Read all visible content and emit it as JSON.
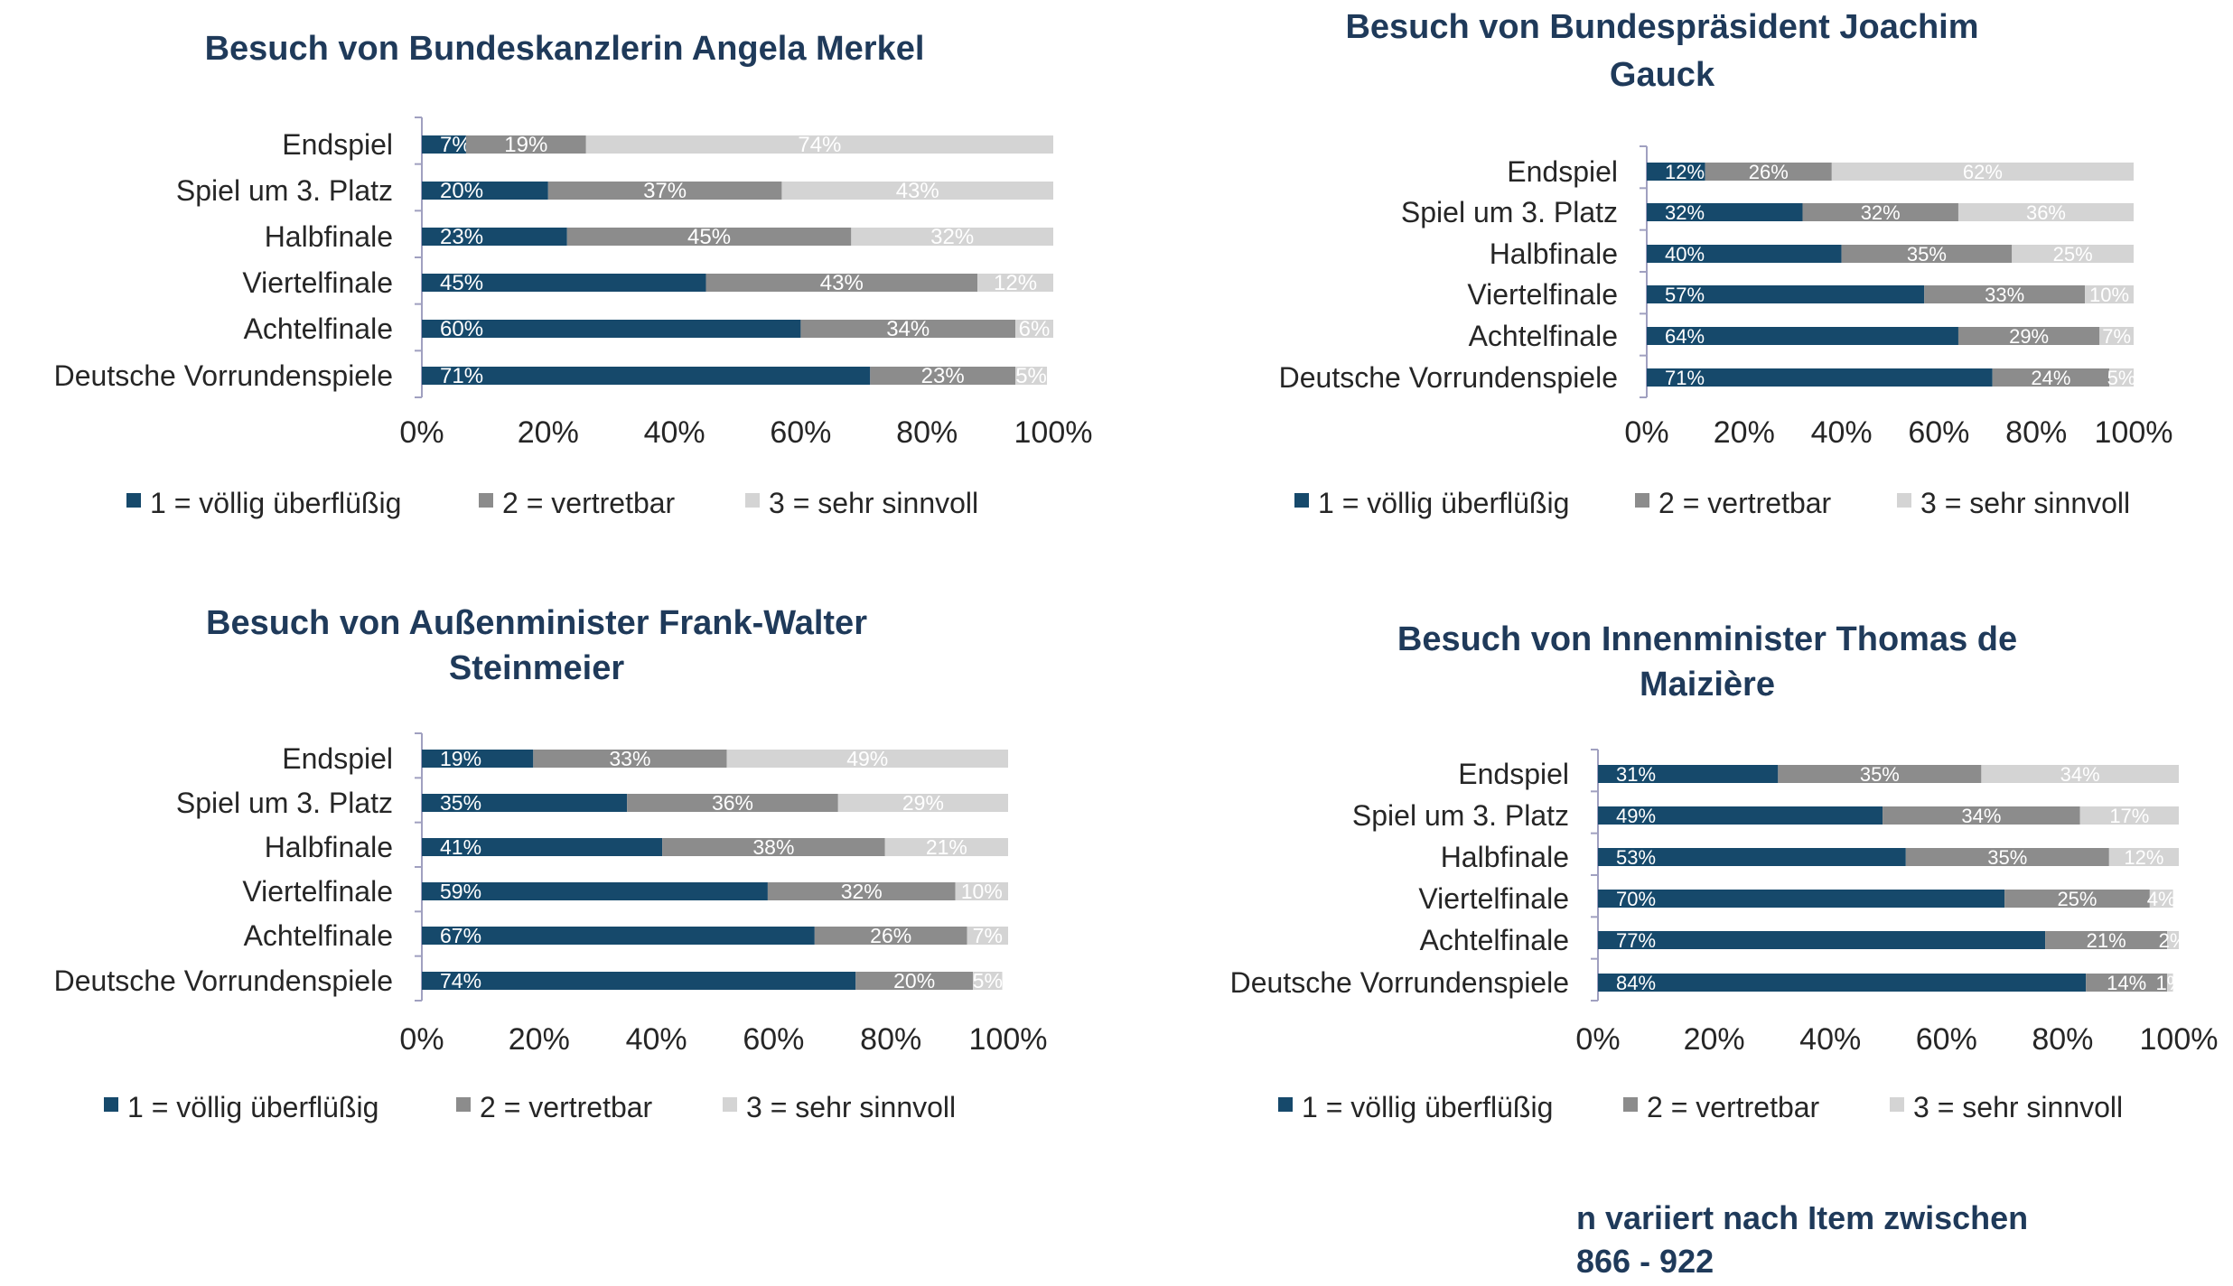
{
  "colors": {
    "series_1": "#16496b",
    "series_2": "#8c8c8c",
    "series_3": "#d4d4d4",
    "title": "#1f3a5a",
    "axis": "#a0a0c0"
  },
  "footnote": {
    "line1": "n variiert nach Item zwischen",
    "line2": "866 - 922"
  },
  "chart_data": [
    {
      "type": "bar",
      "orientation": "horizontal",
      "stacked": true,
      "title": "Besuch von Bundeskanzlerin Angela Merkel",
      "title_lines": [
        "Besuch von Bundeskanzlerin Angela Merkel"
      ],
      "categories": [
        "Endspiel",
        "Spiel um 3. Platz",
        "Halbfinale",
        "Viertelfinale",
        "Achtelfinale",
        "Deutsche Vorrundenspiele"
      ],
      "series": [
        {
          "name": "1 = völlig überflüßig",
          "values": [
            7,
            20,
            23,
            45,
            60,
            71
          ],
          "labels": [
            "7%",
            "20%",
            "23%",
            "45%",
            "60%",
            "71%"
          ]
        },
        {
          "name": "2 = vertretbar",
          "values": [
            19,
            37,
            45,
            43,
            34,
            23
          ],
          "labels": [
            "19%",
            "37%",
            "45%",
            "43%",
            "34%",
            "23%"
          ]
        },
        {
          "name": "3 = sehr sinnvoll",
          "values": [
            74,
            43,
            32,
            12,
            6,
            5
          ],
          "labels": [
            "74%",
            "43%",
            "32%",
            "12%",
            "6%",
            "5%"
          ]
        }
      ],
      "xlim": [
        0,
        100
      ],
      "ticks": [
        "0%",
        "20%",
        "40%",
        "60%",
        "80%",
        "100%"
      ],
      "legend_position": "bottom"
    },
    {
      "type": "bar",
      "orientation": "horizontal",
      "stacked": true,
      "title": "Besuch von Bundespräsident  Joachim Gauck",
      "title_lines": [
        "Besuch von Bundespräsident  Joachim",
        "Gauck"
      ],
      "categories": [
        "Endspiel",
        "Spiel um 3. Platz",
        "Halbfinale",
        "Viertelfinale",
        "Achtelfinale",
        "Deutsche Vorrundenspiele"
      ],
      "series": [
        {
          "name": "1 = völlig überflüßig",
          "values": [
            12,
            32,
            40,
            57,
            64,
            71
          ],
          "labels": [
            "12%",
            "32%",
            "40%",
            "57%",
            "64%",
            "71%"
          ]
        },
        {
          "name": "2 = vertretbar",
          "values": [
            26,
            32,
            35,
            33,
            29,
            24
          ],
          "labels": [
            "26%",
            "32%",
            "35%",
            "33%",
            "29%",
            "24%"
          ]
        },
        {
          "name": "3 = sehr sinnvoll",
          "values": [
            62,
            36,
            25,
            10,
            7,
            5
          ],
          "labels": [
            "62%",
            "36%",
            "25%",
            "10%",
            "7%",
            "5%"
          ]
        }
      ],
      "xlim": [
        0,
        100
      ],
      "ticks": [
        "0%",
        "20%",
        "40%",
        "60%",
        "80%",
        "100%"
      ],
      "legend_position": "bottom"
    },
    {
      "type": "bar",
      "orientation": "horizontal",
      "stacked": true,
      "title": "Besuch von Außenminister Frank-Walter Steinmeier",
      "title_lines": [
        "Besuch von Außenminister Frank-Walter",
        "Steinmeier"
      ],
      "categories": [
        "Endspiel",
        "Spiel um 3. Platz",
        "Halbfinale",
        "Viertelfinale",
        "Achtelfinale",
        "Deutsche Vorrundenspiele"
      ],
      "series": [
        {
          "name": "1 = völlig überflüßig",
          "values": [
            19,
            35,
            41,
            59,
            67,
            74
          ],
          "labels": [
            "19%",
            "35%",
            "41%",
            "59%",
            "67%",
            "74%"
          ]
        },
        {
          "name": "2 = vertretbar",
          "values": [
            33,
            36,
            38,
            32,
            26,
            20
          ],
          "labels": [
            "33%",
            "36%",
            "38%",
            "32%",
            "26%",
            "20%"
          ]
        },
        {
          "name": "3 = sehr sinnvoll",
          "values": [
            49,
            29,
            21,
            10,
            7,
            5
          ],
          "labels": [
            "49%",
            "29%",
            "21%",
            "10%",
            "7%",
            "5%"
          ]
        }
      ],
      "xlim": [
        0,
        100
      ],
      "ticks": [
        "0%",
        "20%",
        "40%",
        "60%",
        "80%",
        "100%"
      ],
      "legend_position": "bottom"
    },
    {
      "type": "bar",
      "orientation": "horizontal",
      "stacked": true,
      "title": "Besuch von Innenminister Thomas de Maizière",
      "title_lines": [
        "Besuch von Innenminister Thomas de",
        "Maizière"
      ],
      "categories": [
        "Endspiel",
        "Spiel um 3. Platz",
        "Halbfinale",
        "Viertelfinale",
        "Achtelfinale",
        "Deutsche Vorrundenspiele"
      ],
      "series": [
        {
          "name": "1 = völlig überflüßig",
          "values": [
            31,
            49,
            53,
            70,
            77,
            84
          ],
          "labels": [
            "31%",
            "49%",
            "53%",
            "70%",
            "77%",
            "84%"
          ]
        },
        {
          "name": "2 = vertretbar",
          "values": [
            35,
            34,
            35,
            25,
            21,
            14
          ],
          "labels": [
            "35%",
            "34%",
            "35%",
            "25%",
            "21%",
            "14%"
          ]
        },
        {
          "name": "3 = sehr sinnvoll",
          "values": [
            34,
            17,
            12,
            4,
            2,
            1
          ],
          "labels": [
            "34%",
            "17%",
            "12%",
            "4%",
            "2%",
            "1%"
          ]
        }
      ],
      "xlim": [
        0,
        100
      ],
      "ticks": [
        "0%",
        "20%",
        "40%",
        "60%",
        "80%",
        "100%"
      ],
      "legend_position": "bottom"
    }
  ]
}
